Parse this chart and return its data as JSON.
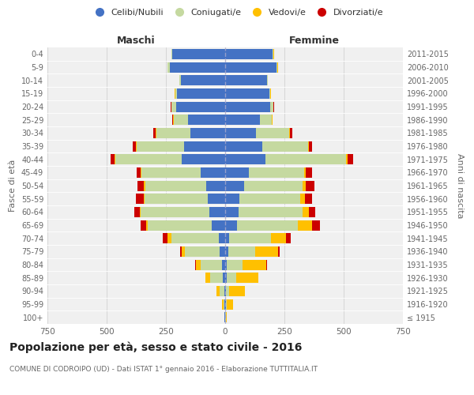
{
  "age_groups": [
    "100+",
    "95-99",
    "90-94",
    "85-89",
    "80-84",
    "75-79",
    "70-74",
    "65-69",
    "60-64",
    "55-59",
    "50-54",
    "45-49",
    "40-44",
    "35-39",
    "30-34",
    "25-29",
    "20-24",
    "15-19",
    "10-14",
    "5-9",
    "0-4"
  ],
  "birth_years": [
    "≤ 1915",
    "1916-1920",
    "1921-1925",
    "1926-1930",
    "1931-1935",
    "1936-1940",
    "1941-1945",
    "1946-1950",
    "1951-1955",
    "1956-1960",
    "1961-1965",
    "1966-1970",
    "1971-1975",
    "1976-1980",
    "1981-1985",
    "1986-1990",
    "1991-1995",
    "1996-2000",
    "2001-2005",
    "2006-2010",
    "2011-2015"
  ],
  "male_celibi": [
    2,
    3,
    5,
    10,
    15,
    22,
    28,
    58,
    68,
    72,
    80,
    105,
    185,
    175,
    148,
    158,
    208,
    202,
    188,
    235,
    222
  ],
  "male_coniugati": [
    2,
    5,
    18,
    52,
    88,
    148,
    198,
    268,
    288,
    268,
    258,
    248,
    278,
    198,
    142,
    58,
    18,
    8,
    4,
    8,
    4
  ],
  "male_vedovi": [
    1,
    5,
    14,
    22,
    22,
    12,
    18,
    8,
    4,
    4,
    4,
    4,
    4,
    4,
    4,
    4,
    2,
    2,
    1,
    1,
    1
  ],
  "male_divorziati": [
    0,
    0,
    0,
    0,
    2,
    8,
    18,
    22,
    22,
    32,
    28,
    18,
    18,
    12,
    8,
    2,
    2,
    1,
    1,
    0,
    0
  ],
  "female_celibi": [
    1,
    2,
    3,
    5,
    8,
    12,
    15,
    50,
    55,
    60,
    80,
    100,
    170,
    155,
    130,
    145,
    190,
    185,
    175,
    215,
    200
  ],
  "female_coniugati": [
    1,
    4,
    12,
    40,
    65,
    115,
    178,
    258,
    272,
    258,
    248,
    232,
    340,
    195,
    140,
    50,
    12,
    6,
    4,
    6,
    4
  ],
  "female_vedovi": [
    3,
    28,
    68,
    95,
    100,
    95,
    65,
    60,
    25,
    18,
    12,
    8,
    8,
    4,
    4,
    4,
    2,
    2,
    1,
    1,
    1
  ],
  "female_divorziati": [
    0,
    0,
    0,
    0,
    2,
    8,
    18,
    32,
    28,
    32,
    38,
    28,
    22,
    12,
    8,
    2,
    2,
    1,
    1,
    0,
    0
  ],
  "colors": {
    "celibi": "#4472c4",
    "coniugati": "#c5d9a0",
    "vedovi": "#ffc000",
    "divorziati": "#cc0000"
  },
  "xlim": 750,
  "title": "Popolazione per età, sesso e stato civile - 2016",
  "subtitle": "COMUNE DI CODROIPO (UD) - Dati ISTAT 1° gennaio 2016 - Elaborazione TUTTITALIA.IT",
  "ylabel_left": "Fasce di età",
  "ylabel_right": "Anni di nascita",
  "xlabel_maschi": "Maschi",
  "xlabel_femmine": "Femmine",
  "bg_color": "#f0f0f0",
  "legend_labels": [
    "Celibi/Nubili",
    "Coniugati/e",
    "Vedovi/e",
    "Divorziati/e"
  ]
}
